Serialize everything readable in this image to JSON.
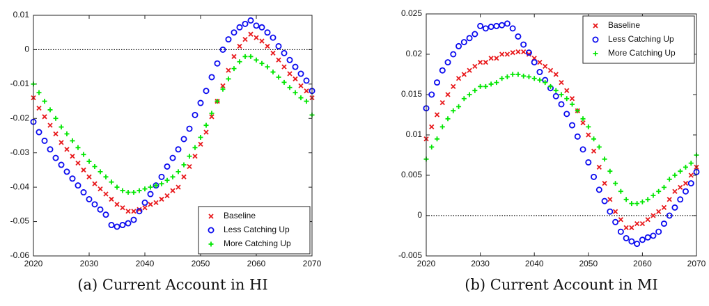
{
  "chart_data": [
    {
      "type": "scatter",
      "caption": "(a) Current Account in HI",
      "x": [
        2020,
        2021,
        2022,
        2023,
        2024,
        2025,
        2026,
        2027,
        2028,
        2029,
        2030,
        2031,
        2032,
        2033,
        2034,
        2035,
        2036,
        2037,
        2038,
        2039,
        2040,
        2041,
        2042,
        2043,
        2044,
        2045,
        2046,
        2047,
        2048,
        2049,
        2050,
        2051,
        2052,
        2053,
        2054,
        2055,
        2056,
        2057,
        2058,
        2059,
        2060,
        2061,
        2062,
        2063,
        2064,
        2065,
        2066,
        2067,
        2068,
        2069,
        2070
      ],
      "xlim": [
        2020,
        2070
      ],
      "xticks": [
        2020,
        2030,
        2040,
        2050,
        2060,
        2070
      ],
      "ylim": [
        -0.06,
        0.01
      ],
      "yticks": [
        0.01,
        0,
        -0.01,
        -0.02,
        -0.03,
        -0.04,
        -0.05,
        -0.06
      ],
      "grid": false,
      "reference_line": 0,
      "legend": "lower right",
      "series": [
        {
          "name": "Baseline",
          "color": "#e8191c",
          "marker": "x",
          "values": [
            -0.014,
            -0.017,
            -0.0195,
            -0.022,
            -0.0245,
            -0.027,
            -0.029,
            -0.031,
            -0.033,
            -0.035,
            -0.037,
            -0.039,
            -0.0405,
            -0.042,
            -0.0435,
            -0.045,
            -0.046,
            -0.047,
            -0.047,
            -0.0465,
            -0.046,
            -0.045,
            -0.0445,
            -0.0435,
            -0.0425,
            -0.041,
            -0.04,
            -0.037,
            -0.034,
            -0.031,
            -0.0275,
            -0.024,
            -0.0195,
            -0.015,
            -0.0105,
            -0.006,
            -0.002,
            0.001,
            0.003,
            0.0045,
            0.0035,
            0.0025,
            0.001,
            -0.001,
            -0.003,
            -0.005,
            -0.007,
            -0.0085,
            -0.0105,
            -0.012,
            -0.014
          ]
        },
        {
          "name": "Less Catching Up",
          "color": "#0a0aef",
          "marker": "o",
          "values": [
            -0.021,
            -0.024,
            -0.0265,
            -0.029,
            -0.0315,
            -0.0335,
            -0.0355,
            -0.0375,
            -0.0395,
            -0.0415,
            -0.0435,
            -0.045,
            -0.0465,
            -0.048,
            -0.051,
            -0.0515,
            -0.051,
            -0.0505,
            -0.0495,
            -0.047,
            -0.0445,
            -0.042,
            -0.0395,
            -0.037,
            -0.034,
            -0.0315,
            -0.029,
            -0.026,
            -0.023,
            -0.019,
            -0.0155,
            -0.012,
            -0.008,
            -0.004,
            0,
            0.003,
            0.005,
            0.0065,
            0.0075,
            0.0085,
            0.007,
            0.0065,
            0.005,
            0.0035,
            0.001,
            -0.001,
            -0.003,
            -0.005,
            -0.007,
            -0.009,
            -0.012
          ]
        },
        {
          "name": "More Catching Up",
          "color": "#00e600",
          "marker": "+",
          "values": [
            -0.01,
            -0.0125,
            -0.015,
            -0.0175,
            -0.02,
            -0.0225,
            -0.0245,
            -0.0265,
            -0.0285,
            -0.0305,
            -0.0325,
            -0.034,
            -0.0355,
            -0.037,
            -0.0385,
            -0.04,
            -0.041,
            -0.0415,
            -0.0415,
            -0.041,
            -0.0405,
            -0.04,
            -0.0395,
            -0.039,
            -0.038,
            -0.037,
            -0.0355,
            -0.0335,
            -0.031,
            -0.0285,
            -0.0255,
            -0.022,
            -0.0185,
            -0.015,
            -0.0115,
            -0.0085,
            -0.0055,
            -0.0035,
            -0.002,
            -0.002,
            -0.003,
            -0.004,
            -0.005,
            -0.0065,
            -0.008,
            -0.0095,
            -0.011,
            -0.0125,
            -0.014,
            -0.015,
            -0.019
          ]
        }
      ]
    },
    {
      "type": "scatter",
      "caption": "(b) Current Account in MI",
      "x": [
        2020,
        2021,
        2022,
        2023,
        2024,
        2025,
        2026,
        2027,
        2028,
        2029,
        2030,
        2031,
        2032,
        2033,
        2034,
        2035,
        2036,
        2037,
        2038,
        2039,
        2040,
        2041,
        2042,
        2043,
        2044,
        2045,
        2046,
        2047,
        2048,
        2049,
        2050,
        2051,
        2052,
        2053,
        2054,
        2055,
        2056,
        2057,
        2058,
        2059,
        2060,
        2061,
        2062,
        2063,
        2064,
        2065,
        2066,
        2067,
        2068,
        2069,
        2070
      ],
      "xlim": [
        2020,
        2070
      ],
      "xticks": [
        2020,
        2030,
        2040,
        2050,
        2060,
        2070
      ],
      "ylim": [
        -0.005,
        0.025
      ],
      "yticks": [
        0.025,
        0.02,
        0.015,
        0.01,
        0.005,
        0,
        -0.005
      ],
      "grid": false,
      "reference_line": 0,
      "legend": "upper right",
      "series": [
        {
          "name": "Baseline",
          "color": "#e8191c",
          "marker": "x",
          "values": [
            0.0095,
            0.011,
            0.0125,
            0.014,
            0.015,
            0.016,
            0.017,
            0.0175,
            0.018,
            0.0185,
            0.019,
            0.019,
            0.0195,
            0.0195,
            0.02,
            0.02,
            0.0202,
            0.0203,
            0.0203,
            0.02,
            0.0195,
            0.019,
            0.0185,
            0.018,
            0.0175,
            0.0165,
            0.0155,
            0.0145,
            0.013,
            0.0115,
            0.01,
            0.008,
            0.006,
            0.004,
            0.002,
            0.0005,
            -0.0005,
            -0.0015,
            -0.0015,
            -0.001,
            -0.001,
            -0.0005,
            0,
            0.0005,
            0.001,
            0.002,
            0.003,
            0.0035,
            0.004,
            0.005,
            0.006
          ]
        },
        {
          "name": "Less Catching Up",
          "color": "#0a0aef",
          "marker": "o",
          "values": [
            0.0133,
            0.015,
            0.0165,
            0.018,
            0.019,
            0.02,
            0.021,
            0.0215,
            0.022,
            0.0225,
            0.0235,
            0.0232,
            0.0234,
            0.0235,
            0.0236,
            0.0238,
            0.0232,
            0.0222,
            0.0212,
            0.0202,
            0.019,
            0.0178,
            0.0168,
            0.0158,
            0.0148,
            0.0138,
            0.0126,
            0.0112,
            0.0098,
            0.0082,
            0.0066,
            0.0048,
            0.0032,
            0.0018,
            0.0005,
            -0.0008,
            -0.002,
            -0.0028,
            -0.0032,
            -0.0035,
            -0.003,
            -0.0027,
            -0.0025,
            -0.002,
            -0.001,
            0,
            0.001,
            0.002,
            0.003,
            0.004,
            0.0054
          ]
        },
        {
          "name": "More Catching Up",
          "color": "#00e600",
          "marker": "+",
          "values": [
            0.007,
            0.0085,
            0.0095,
            0.011,
            0.012,
            0.013,
            0.0135,
            0.0145,
            0.015,
            0.0155,
            0.016,
            0.016,
            0.0163,
            0.0165,
            0.017,
            0.0172,
            0.0175,
            0.0175,
            0.0173,
            0.0172,
            0.017,
            0.0168,
            0.0165,
            0.016,
            0.0155,
            0.015,
            0.0145,
            0.0138,
            0.013,
            0.012,
            0.011,
            0.0095,
            0.0085,
            0.007,
            0.0055,
            0.004,
            0.003,
            0.002,
            0.0015,
            0.0015,
            0.0017,
            0.002,
            0.0025,
            0.003,
            0.0035,
            0.0045,
            0.005,
            0.0055,
            0.006,
            0.0065,
            0.0075
          ]
        }
      ]
    }
  ]
}
